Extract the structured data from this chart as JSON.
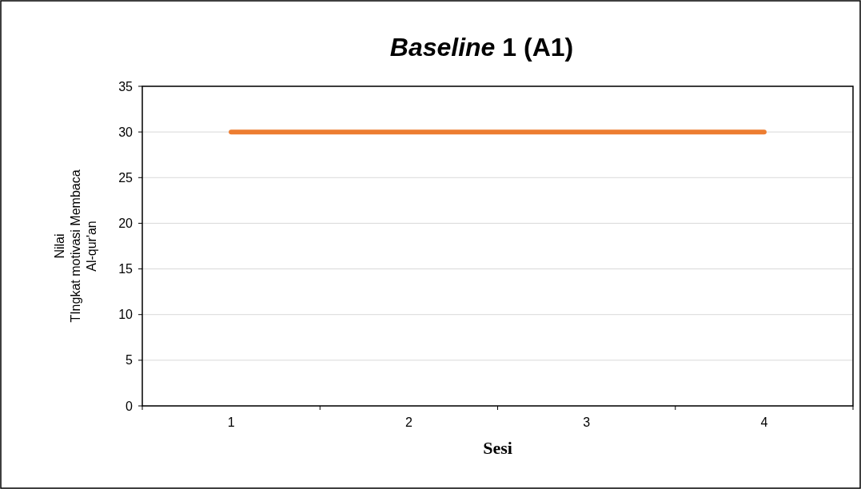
{
  "chart_data": {
    "type": "line",
    "title": "Baseline 1 (A1)",
    "xlabel": "Sesi",
    "ylabel": "Nilai\nTIngkat motivasi Membaca\nAl-qur'an",
    "categories": [
      "1",
      "2",
      "3",
      "4"
    ],
    "series": [
      {
        "color": "#ed7d31",
        "values": [
          30,
          30,
          30,
          30
        ]
      }
    ],
    "ylim": [
      0,
      35
    ],
    "yticks": [
      0,
      5,
      10,
      15,
      20,
      25,
      30,
      35
    ],
    "grid": "y",
    "marker": "none",
    "line_style": "solid"
  }
}
